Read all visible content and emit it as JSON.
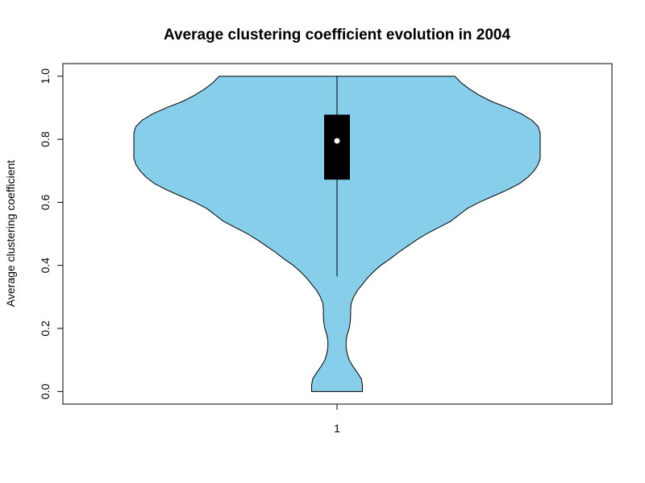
{
  "chart_data": {
    "type": "violin",
    "title": "Average clustering coefficient evolution in 2004",
    "xlabel": "",
    "ylabel": "Average clustering coefficient",
    "categories": [
      "1"
    ],
    "ylim": [
      -0.04,
      1.04
    ],
    "yticks": [
      "0.0",
      "0.2",
      "0.4",
      "0.6",
      "0.8",
      "1.0"
    ],
    "grid": false,
    "violin_fill": "#87CEEB",
    "box_color": "#000000",
    "median_color": "#ffffff",
    "stats": {
      "min": 0.0,
      "lower_whisker": 0.365,
      "q1": 0.672,
      "median": 0.795,
      "q3": 0.878,
      "max": 1.0
    },
    "density_half_width_profile": {
      "note": "relative half-width of violin (1 = widest) at y values",
      "y": [
        0.0,
        0.02,
        0.04,
        0.06,
        0.08,
        0.1,
        0.12,
        0.14,
        0.16,
        0.18,
        0.2,
        0.22,
        0.24,
        0.26,
        0.28,
        0.3,
        0.32,
        0.34,
        0.36,
        0.38,
        0.4,
        0.42,
        0.44,
        0.46,
        0.48,
        0.5,
        0.52,
        0.54,
        0.56,
        0.58,
        0.6,
        0.62,
        0.64,
        0.66,
        0.68,
        0.7,
        0.72,
        0.74,
        0.76,
        0.78,
        0.8,
        0.82,
        0.84,
        0.86,
        0.88,
        0.9,
        0.92,
        0.94,
        0.96,
        0.98,
        1.0
      ],
      "w": [
        0.125,
        0.125,
        0.12,
        0.1,
        0.078,
        0.06,
        0.05,
        0.045,
        0.045,
        0.05,
        0.06,
        0.065,
        0.067,
        0.067,
        0.07,
        0.082,
        0.1,
        0.125,
        0.15,
        0.18,
        0.215,
        0.26,
        0.3,
        0.345,
        0.39,
        0.44,
        0.5,
        0.56,
        0.6,
        0.64,
        0.7,
        0.77,
        0.84,
        0.9,
        0.94,
        0.97,
        0.99,
        1.0,
        1.0,
        1.0,
        1.0,
        1.0,
        0.99,
        0.96,
        0.91,
        0.84,
        0.76,
        0.7,
        0.65,
        0.61,
        0.58
      ]
    }
  }
}
